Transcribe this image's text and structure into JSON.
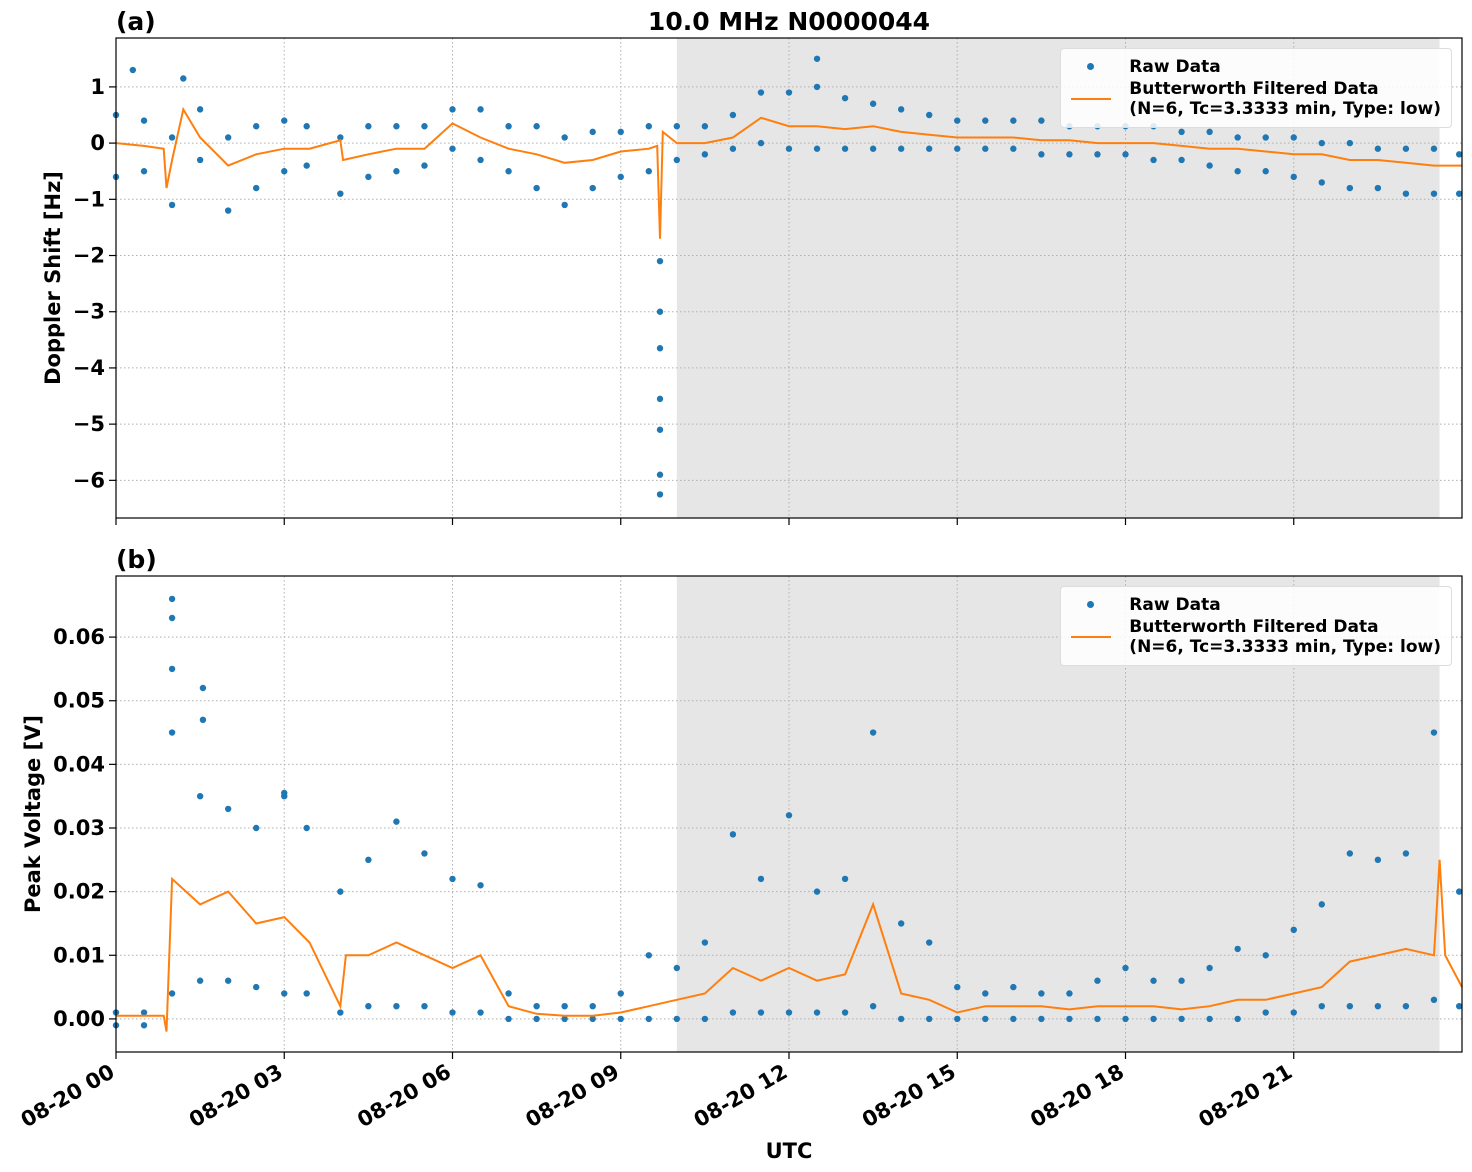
{
  "chart_data": [
    {
      "type": "line",
      "title": "10.0 MHz N0000044",
      "panel_label": "(a)",
      "ylabel": "Doppler Shift [Hz]",
      "xlim": [
        0,
        24
      ],
      "xticks": [
        0,
        3,
        6,
        9,
        12,
        15,
        18,
        21
      ],
      "xtick_labels_visible": false,
      "ylim": [
        -6.67,
        1.87
      ],
      "yticks": [
        {
          "value": -6,
          "label": "−6"
        },
        {
          "value": -5,
          "label": "−5"
        },
        {
          "value": -4,
          "label": "−4"
        },
        {
          "value": -3,
          "label": "−3"
        },
        {
          "value": -2,
          "label": "−2"
        },
        {
          "value": -1,
          "label": "−1"
        },
        0,
        1
      ],
      "grid": true,
      "legend": "upper right",
      "shaded_region": [
        10.0,
        23.6
      ],
      "series": [
        {
          "name": "Raw Data",
          "color": "#1f77b4",
          "marker": "dot",
          "x": [
            0,
            0,
            0.5,
            0.5,
            1,
            1,
            1.5,
            1.5,
            2,
            2,
            2.5,
            2.5,
            3,
            3,
            3.4,
            3.4,
            4,
            4,
            4.5,
            4.5,
            5,
            5,
            5.5,
            5.5,
            6,
            6,
            6.5,
            6.5,
            7,
            7,
            7.5,
            7.5,
            8,
            8,
            8.5,
            8.5,
            9,
            9,
            9.5,
            9.5,
            10,
            10,
            10.5,
            10.5,
            11,
            11,
            11.5,
            11.5,
            12,
            12,
            12.5,
            12.5,
            13,
            13,
            13.5,
            13.5,
            14,
            14,
            14.5,
            14.5,
            15,
            15,
            15.5,
            15.5,
            16,
            16,
            16.5,
            16.5,
            17,
            17,
            17.5,
            17.5,
            18,
            18,
            18.5,
            18.5,
            19,
            19,
            19.5,
            19.5,
            20,
            20,
            20.5,
            20.5,
            21,
            21,
            21.5,
            21.5,
            22,
            22,
            22.5,
            22.5,
            23,
            23,
            23.5,
            23.5,
            23.95,
            23.95,
            0.3,
            1.2,
            9.7,
            9.7,
            9.7,
            9.7,
            9.7,
            9.7,
            9.7,
            12.5
          ],
          "values": [
            0.5,
            -0.6,
            0.4,
            -0.5,
            0.1,
            -1.1,
            0.6,
            -0.3,
            0.1,
            -1.2,
            0.3,
            -0.8,
            0.4,
            -0.5,
            0.3,
            -0.4,
            0.1,
            -0.9,
            0.3,
            -0.6,
            0.3,
            -0.5,
            0.3,
            -0.4,
            0.6,
            -0.1,
            0.6,
            -0.3,
            0.3,
            -0.5,
            0.3,
            -0.8,
            0.1,
            -1.1,
            0.2,
            -0.8,
            0.2,
            -0.6,
            0.3,
            -0.5,
            0.3,
            -0.3,
            0.3,
            -0.2,
            0.5,
            -0.1,
            0.9,
            0.0,
            0.9,
            -0.1,
            1.0,
            -0.1,
            0.8,
            -0.1,
            0.7,
            -0.1,
            0.6,
            -0.1,
            0.5,
            -0.1,
            0.4,
            -0.1,
            0.4,
            -0.1,
            0.4,
            -0.1,
            0.4,
            -0.2,
            0.3,
            -0.2,
            0.3,
            -0.2,
            0.3,
            -0.2,
            0.3,
            -0.3,
            0.2,
            -0.3,
            0.2,
            -0.4,
            0.1,
            -0.5,
            0.1,
            -0.5,
            0.1,
            -0.6,
            0.0,
            -0.7,
            0.0,
            -0.8,
            -0.1,
            -0.8,
            -0.1,
            -0.9,
            -0.1,
            -0.9,
            -0.2,
            -0.9,
            1.3,
            1.15,
            -2.1,
            -3.0,
            -3.65,
            -4.55,
            -5.1,
            -5.9,
            -6.25,
            1.5
          ]
        },
        {
          "name": "Butterworth Filtered Data\n(N=6, Tc=3.3333 min, Type: low)",
          "color": "#ff7f0e",
          "marker": "line",
          "x": [
            0,
            0.5,
            0.85,
            0.9,
            1,
            1.2,
            1.5,
            2,
            2.5,
            3,
            3.45,
            4,
            4.05,
            4.5,
            5,
            5.5,
            6,
            6.5,
            7,
            7.5,
            8,
            8.5,
            9,
            9.5,
            9.65,
            9.7,
            9.75,
            10,
            10.5,
            11,
            11.5,
            12,
            12.5,
            13,
            13.5,
            14,
            14.5,
            15,
            15.5,
            16,
            16.5,
            17,
            17.5,
            18,
            18.5,
            19,
            19.5,
            20,
            20.5,
            21,
            21.5,
            22,
            22.5,
            23,
            23.5,
            24
          ],
          "values": [
            0.0,
            -0.05,
            -0.1,
            -0.8,
            -0.3,
            0.6,
            0.1,
            -0.4,
            -0.2,
            -0.1,
            -0.1,
            0.05,
            -0.3,
            -0.2,
            -0.1,
            -0.1,
            0.35,
            0.1,
            -0.1,
            -0.2,
            -0.35,
            -0.3,
            -0.15,
            -0.1,
            -0.05,
            -1.7,
            0.2,
            0.0,
            0.0,
            0.1,
            0.45,
            0.3,
            0.3,
            0.25,
            0.3,
            0.2,
            0.15,
            0.1,
            0.1,
            0.1,
            0.05,
            0.05,
            0.0,
            0.0,
            0.0,
            -0.05,
            -0.1,
            -0.1,
            -0.15,
            -0.2,
            -0.2,
            -0.3,
            -0.3,
            -0.35,
            -0.4,
            -0.4
          ]
        }
      ]
    },
    {
      "type": "line",
      "panel_label": "(b)",
      "ylabel": "Peak Voltage [V]",
      "xlabel": "UTC",
      "xlim": [
        0,
        24
      ],
      "xticks": [
        {
          "value": 0,
          "label": "08-20 00"
        },
        {
          "value": 3,
          "label": "08-20 03"
        },
        {
          "value": 6,
          "label": "08-20 06"
        },
        {
          "value": 9,
          "label": "08-20 09"
        },
        {
          "value": 12,
          "label": "08-20 12"
        },
        {
          "value": 15,
          "label": "08-20 15"
        },
        {
          "value": 18,
          "label": "08-20 18"
        },
        {
          "value": 21,
          "label": "08-20 21"
        }
      ],
      "xtick_labels_visible": true,
      "ylim": [
        -0.0052,
        0.0696
      ],
      "yticks": [
        {
          "value": 0,
          "label": "0.00"
        },
        0.01,
        0.02,
        0.03,
        0.04,
        0.05,
        0.06
      ],
      "grid": true,
      "legend": "upper right",
      "shaded_region": [
        10.0,
        23.6
      ],
      "series": [
        {
          "name": "Raw Data",
          "color": "#1f77b4",
          "marker": "dot",
          "x": [
            0,
            0,
            0.5,
            0.5,
            1,
            1,
            1.5,
            1.5,
            2,
            2,
            2.5,
            2.5,
            3,
            3,
            3.4,
            3.4,
            4,
            4,
            4.5,
            4.5,
            5,
            5,
            5.5,
            5.5,
            6,
            6,
            6.5,
            6.5,
            7,
            7,
            7.5,
            7.5,
            8,
            8,
            8.5,
            8.5,
            9,
            9,
            9.5,
            9.5,
            10,
            10,
            10.5,
            10.5,
            11,
            11,
            11.5,
            11.5,
            12,
            12,
            12.5,
            12.5,
            13,
            13,
            13.5,
            13.5,
            14,
            14,
            14.5,
            14.5,
            15,
            15,
            15.5,
            15.5,
            16,
            16,
            16.5,
            16.5,
            17,
            17,
            17.5,
            17.5,
            18,
            18,
            18.5,
            18.5,
            19,
            19,
            19.5,
            19.5,
            20,
            20,
            20.5,
            20.5,
            21,
            21,
            21.5,
            21.5,
            22,
            22,
            22.5,
            22.5,
            23,
            23,
            23.5,
            23.5,
            23.95,
            23.95,
            1,
            1,
            1,
            1.55,
            1.55,
            3
          ],
          "values": [
            0.001,
            -0.001,
            0.001,
            -0.001,
            0.045,
            0.004,
            0.035,
            0.006,
            0.033,
            0.006,
            0.03,
            0.005,
            0.035,
            0.004,
            0.03,
            0.004,
            0.02,
            0.001,
            0.025,
            0.002,
            0.031,
            0.002,
            0.026,
            0.002,
            0.022,
            0.001,
            0.021,
            0.001,
            0.004,
            0.0,
            0.002,
            0.0,
            0.002,
            0.0,
            0.002,
            0.0,
            0.004,
            0.0,
            0.01,
            0.0,
            0.008,
            0.0,
            0.012,
            0.0,
            0.029,
            0.001,
            0.022,
            0.001,
            0.032,
            0.001,
            0.02,
            0.001,
            0.022,
            0.001,
            0.045,
            0.002,
            0.015,
            0.0,
            0.012,
            0.0,
            0.005,
            0.0,
            0.004,
            0.0,
            0.005,
            0.0,
            0.004,
            0.0,
            0.004,
            0.0,
            0.006,
            0.0,
            0.008,
            0.0,
            0.006,
            0.0,
            0.006,
            0.0,
            0.008,
            0.0,
            0.011,
            0.0,
            0.01,
            0.001,
            0.014,
            0.001,
            0.018,
            0.002,
            0.026,
            0.002,
            0.025,
            0.002,
            0.026,
            0.002,
            0.045,
            0.003,
            0.02,
            0.002,
            0.066,
            0.063,
            0.055,
            0.052,
            0.047,
            0.0355
          ]
        },
        {
          "name": "Butterworth Filtered Data\n(N=6, Tc=3.3333 min, Type: low)",
          "color": "#ff7f0e",
          "marker": "line",
          "x": [
            0,
            0.5,
            0.85,
            0.9,
            1,
            1.5,
            2,
            2.5,
            3,
            3.45,
            4,
            4.1,
            4.5,
            5,
            5.5,
            6,
            6.5,
            7,
            7.5,
            8,
            8.5,
            9,
            9.5,
            10,
            10.5,
            11,
            11.5,
            12,
            12.5,
            13,
            13.5,
            14,
            14.5,
            15,
            15.5,
            16,
            16.5,
            17,
            17.5,
            18,
            18.5,
            19,
            19.5,
            20,
            20.5,
            21,
            21.5,
            22,
            22.5,
            23,
            23.5,
            23.6,
            23.7,
            24
          ],
          "values": [
            0.0005,
            0.0005,
            0.0005,
            -0.002,
            0.022,
            0.018,
            0.02,
            0.015,
            0.016,
            0.012,
            0.002,
            0.01,
            0.01,
            0.012,
            0.01,
            0.008,
            0.01,
            0.002,
            0.0008,
            0.0005,
            0.0005,
            0.001,
            0.002,
            0.003,
            0.004,
            0.008,
            0.006,
            0.008,
            0.006,
            0.007,
            0.018,
            0.004,
            0.003,
            0.001,
            0.002,
            0.002,
            0.002,
            0.0015,
            0.002,
            0.002,
            0.002,
            0.0015,
            0.002,
            0.003,
            0.003,
            0.004,
            0.005,
            0.009,
            0.01,
            0.011,
            0.01,
            0.025,
            0.01,
            0.005
          ]
        }
      ]
    }
  ]
}
